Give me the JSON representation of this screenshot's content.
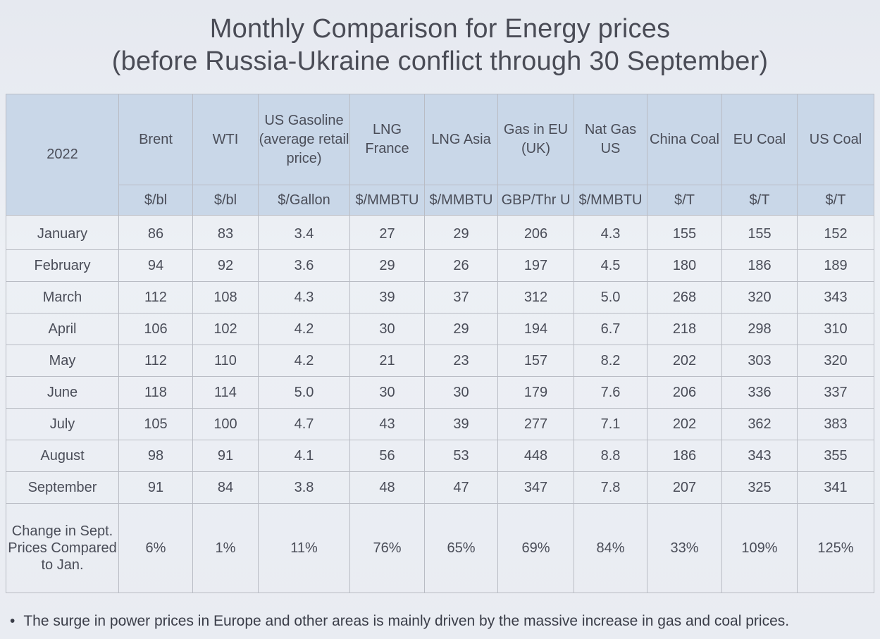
{
  "title": {
    "line1": "Monthly Comparison for Energy prices",
    "line2": "(before Russia-Ukraine conflict through 30 September)"
  },
  "table": {
    "year_label": "2022",
    "columns": [
      {
        "name": "Brent",
        "unit": "$/bl"
      },
      {
        "name": "WTI",
        "unit": "$/bl"
      },
      {
        "name": "US Gasoline (average retail price)",
        "unit": "$/Gallon"
      },
      {
        "name": "LNG France",
        "unit": "$/MMBTU"
      },
      {
        "name": "LNG Asia",
        "unit": "$/MMBTU"
      },
      {
        "name": "Gas in EU (UK)",
        "unit": "GBP/Thr U"
      },
      {
        "name": "Nat Gas US",
        "unit": "$/MMBTU"
      },
      {
        "name": "China Coal",
        "unit": "$/T"
      },
      {
        "name": "EU Coal",
        "unit": "$/T"
      },
      {
        "name": "US Coal",
        "unit": "$/T"
      }
    ],
    "rows": [
      {
        "month": "January",
        "values": [
          "86",
          "83",
          "3.4",
          "27",
          "29",
          "206",
          "4.3",
          "155",
          "155",
          "152"
        ]
      },
      {
        "month": "February",
        "values": [
          "94",
          "92",
          "3.6",
          "29",
          "26",
          "197",
          "4.5",
          "180",
          "186",
          "189"
        ]
      },
      {
        "month": "March",
        "values": [
          "112",
          "108",
          "4.3",
          "39",
          "37",
          "312",
          "5.0",
          "268",
          "320",
          "343"
        ]
      },
      {
        "month": "April",
        "values": [
          "106",
          "102",
          "4.2",
          "30",
          "29",
          "194",
          "6.7",
          "218",
          "298",
          "310"
        ]
      },
      {
        "month": "May",
        "values": [
          "112",
          "110",
          "4.2",
          "21",
          "23",
          "157",
          "8.2",
          "202",
          "303",
          "320"
        ]
      },
      {
        "month": "June",
        "values": [
          "118",
          "114",
          "5.0",
          "30",
          "30",
          "179",
          "7.6",
          "206",
          "336",
          "337"
        ]
      },
      {
        "month": "July",
        "values": [
          "105",
          "100",
          "4.7",
          "43",
          "39",
          "277",
          "7.1",
          "202",
          "362",
          "383"
        ]
      },
      {
        "month": "August",
        "values": [
          "98",
          "91",
          "4.1",
          "56",
          "53",
          "448",
          "8.8",
          "186",
          "343",
          "355"
        ]
      },
      {
        "month": "September",
        "values": [
          "91",
          "84",
          "3.8",
          "48",
          "47",
          "347",
          "7.8",
          "207",
          "325",
          "341"
        ]
      }
    ],
    "change_row": {
      "label": "Change in Sept. Prices Compared to Jan.",
      "values": [
        "6%",
        "1%",
        "11%",
        "76%",
        "65%",
        "69%",
        "84%",
        "33%",
        "109%",
        "125%"
      ]
    }
  },
  "note": "The surge in power prices in Europe and other areas is mainly driven by the massive increase in gas and coal prices."
}
